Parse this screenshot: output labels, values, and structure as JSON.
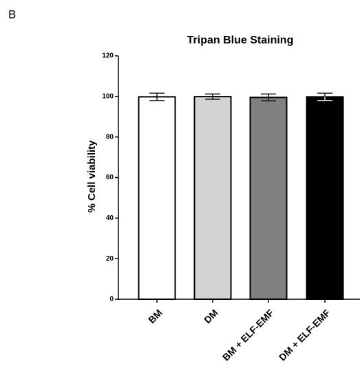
{
  "panel_label": "B",
  "chart_data": {
    "type": "bar",
    "title": "Tripan Blue Staining",
    "y_label": "% Cell viability",
    "categories": [
      "BM",
      "DM",
      "BM + ELF-EMF",
      "DM + ELF-EMF"
    ],
    "values": [
      99.8,
      99.9,
      99.5,
      99.8
    ],
    "errors": [
      1.8,
      1.3,
      1.7,
      1.8
    ],
    "colors": [
      "#ffffff",
      "#d3d3d3",
      "#808080",
      "#000000"
    ],
    "ylim": [
      0,
      120
    ],
    "yticks": [
      0,
      20,
      40,
      60,
      80,
      100,
      120
    ]
  }
}
